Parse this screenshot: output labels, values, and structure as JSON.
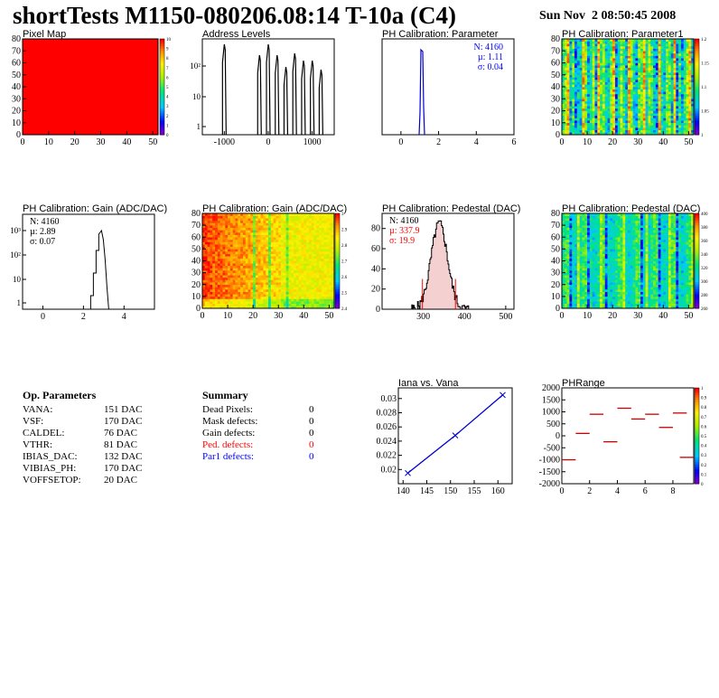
{
  "header": {
    "title": "shortTests M1150-080206.08:14 T-10a (C4)",
    "date": "Sun Nov  2 08:50:45 2008"
  },
  "chart_data": [
    {
      "id": "pixel-map",
      "type": "heatmap",
      "title": "Pixel Map",
      "xlim": [
        0,
        52
      ],
      "ylim": [
        0,
        80
      ],
      "xticks": [
        "0",
        "10",
        "20",
        "30",
        "40",
        "50"
      ],
      "yticks": [
        "0",
        "10",
        "20",
        "30",
        "40",
        "50",
        "60",
        "70",
        "80"
      ],
      "fill_color": "#ff0000",
      "colorbar_ticks": [
        "10",
        "9",
        "8",
        "7",
        "6",
        "5",
        "4",
        "3",
        "2",
        "1",
        "0"
      ]
    },
    {
      "id": "address-levels",
      "type": "bar",
      "title": "Address Levels",
      "yscale": "log",
      "xlim": [
        -1500,
        1500
      ],
      "xticks": [
        "-1000",
        "0",
        "1000"
      ],
      "yticks": [
        "10²",
        "10",
        "1"
      ],
      "peak_centers": [
        -1000,
        -200,
        0,
        200,
        400,
        600,
        800,
        1000,
        1200
      ]
    },
    {
      "id": "ph-cal-parameter",
      "type": "bar",
      "title": "PH Calibration: Parameter",
      "xlim": [
        -1,
        6
      ],
      "xticks": [
        "0",
        "2",
        "4",
        "6"
      ],
      "stats": {
        "n": "N: 4160",
        "mean": "µ: 1.11",
        "sigma": "σ: 0.04"
      },
      "stats_color": "#0000ff",
      "peak_x": 1.11
    },
    {
      "id": "ph-cal-parameter1",
      "type": "heatmap",
      "title": "PH Calibration: Parameter1",
      "xlim": [
        0,
        52
      ],
      "ylim": [
        0,
        80
      ],
      "xticks": [
        "0",
        "10",
        "20",
        "30",
        "40",
        "50"
      ],
      "yticks": [
        "0",
        "10",
        "20",
        "30",
        "40",
        "50",
        "60",
        "70",
        "80"
      ],
      "colorbar_ticks": [
        "1.2",
        "1.15",
        "1.1",
        "1.05",
        "1"
      ]
    },
    {
      "id": "ph-cal-gain-hist",
      "type": "bar",
      "title": "PH Calibration: Gain (ADC/DAC)",
      "yscale": "log",
      "xlim": [
        -1,
        5.5
      ],
      "xticks": [
        "0",
        "2",
        "4"
      ],
      "yticks": [
        "10³",
        "10²",
        "10",
        "1"
      ],
      "stats": {
        "n": "N: 4160",
        "mean": "µ: 2.89",
        "sigma": "σ: 0.07"
      },
      "peak_x": 2.89
    },
    {
      "id": "ph-cal-gain-map",
      "type": "heatmap",
      "title": "PH Calibration: Gain (ADC/DAC)",
      "xlim": [
        0,
        52
      ],
      "ylim": [
        0,
        80
      ],
      "xticks": [
        "0",
        "10",
        "20",
        "30",
        "40",
        "50"
      ],
      "yticks": [
        "0",
        "10",
        "20",
        "30",
        "40",
        "50",
        "60",
        "70",
        "80"
      ],
      "colorbar_ticks": [
        "3",
        "2.9",
        "2.8",
        "2.7",
        "2.6",
        "2.5",
        "2.4"
      ]
    },
    {
      "id": "ph-cal-pedestal-hist",
      "type": "bar",
      "title": "PH Calibration: Pedestal (DAC)",
      "xlim": [
        200,
        520
      ],
      "ylim": [
        0,
        95
      ],
      "xticks": [
        "300",
        "400",
        "500"
      ],
      "yticks": [
        "0",
        "20",
        "40",
        "60",
        "80"
      ],
      "stats": {
        "n": "N: 4160",
        "mean": "µ: 337.9",
        "sigma": "σ: 19.9"
      },
      "stats_mean_color": "#ff0000",
      "mean": 337.9,
      "sigma": 19.9,
      "cut_lines": [
        298,
        378
      ]
    },
    {
      "id": "ph-cal-pedestal-map",
      "type": "heatmap",
      "title": "PH Calibration: Pedestal (DAC)",
      "xlim": [
        0,
        52
      ],
      "ylim": [
        0,
        80
      ],
      "xticks": [
        "0",
        "10",
        "20",
        "30",
        "40",
        "50"
      ],
      "yticks": [
        "0",
        "10",
        "20",
        "30",
        "40",
        "50",
        "60",
        "70",
        "80"
      ],
      "colorbar_ticks": [
        "400",
        "380",
        "360",
        "340",
        "320",
        "300",
        "280",
        "260"
      ]
    },
    {
      "id": "iana-vs-vana",
      "type": "line",
      "title": "Iana vs. Vana",
      "x": [
        141,
        151,
        161
      ],
      "y": [
        0.0195,
        0.0248,
        0.0305
      ],
      "xlim": [
        139,
        163
      ],
      "ylim": [
        0.018,
        0.0315
      ],
      "xticks": [
        "140",
        "145",
        "150",
        "155",
        "160"
      ],
      "yticks": [
        "0.02",
        "0.022",
        "0.024",
        "0.026",
        "0.028",
        "0.03"
      ],
      "line_color": "#0000cc"
    },
    {
      "id": "phrange",
      "type": "scatter",
      "title": "PHRange",
      "xlim": [
        0,
        9.5
      ],
      "ylim": [
        -2000,
        2000
      ],
      "xticks": [
        "0",
        "2",
        "4",
        "6",
        "8"
      ],
      "yticks": [
        "2000",
        "1500",
        "1000",
        "500",
        "0",
        "-500",
        "-1000",
        "-1500",
        "-2000"
      ],
      "segments": [
        {
          "x": 0,
          "y": -1000
        },
        {
          "x": 1,
          "y": 100
        },
        {
          "x": 2,
          "y": 900
        },
        {
          "x": 3,
          "y": -250
        },
        {
          "x": 4,
          "y": 1150
        },
        {
          "x": 5,
          "y": 700
        },
        {
          "x": 6,
          "y": 900
        },
        {
          "x": 7,
          "y": 350
        },
        {
          "x": 8,
          "y": 950
        },
        {
          "x": 8.5,
          "y": -900
        }
      ],
      "segment_color": "#cc0000",
      "colorbar_ticks": [
        "1",
        "0.9",
        "0.8",
        "0.7",
        "0.6",
        "0.5",
        "0.4",
        "0.3",
        "0.2",
        "0.1",
        "0"
      ]
    }
  ],
  "op_parameters": {
    "title": "Op. Parameters",
    "rows": [
      {
        "name": "VANA:",
        "value": "151 DAC"
      },
      {
        "name": "VSF:",
        "value": "170 DAC"
      },
      {
        "name": "CALDEL:",
        "value": "76 DAC"
      },
      {
        "name": "VTHR:",
        "value": "81 DAC"
      },
      {
        "name": "IBIAS_DAC:",
        "value": "132 DAC"
      },
      {
        "name": "VIBIAS_PH:",
        "value": "170 DAC"
      },
      {
        "name": "VOFFSETOP:",
        "value": "20 DAC"
      }
    ]
  },
  "summary": {
    "title": "Summary",
    "rows": [
      {
        "name": "Dead Pixels:",
        "value": "0",
        "color": "#000000"
      },
      {
        "name": "Mask defects:",
        "value": "0",
        "color": "#000000"
      },
      {
        "name": "Gain defects:",
        "value": "0",
        "color": "#000000"
      },
      {
        "name": "Ped. defects:",
        "value": "0",
        "color": "#ff0000"
      },
      {
        "name": "Par1 defects:",
        "value": "0",
        "color": "#0000ff"
      }
    ]
  }
}
